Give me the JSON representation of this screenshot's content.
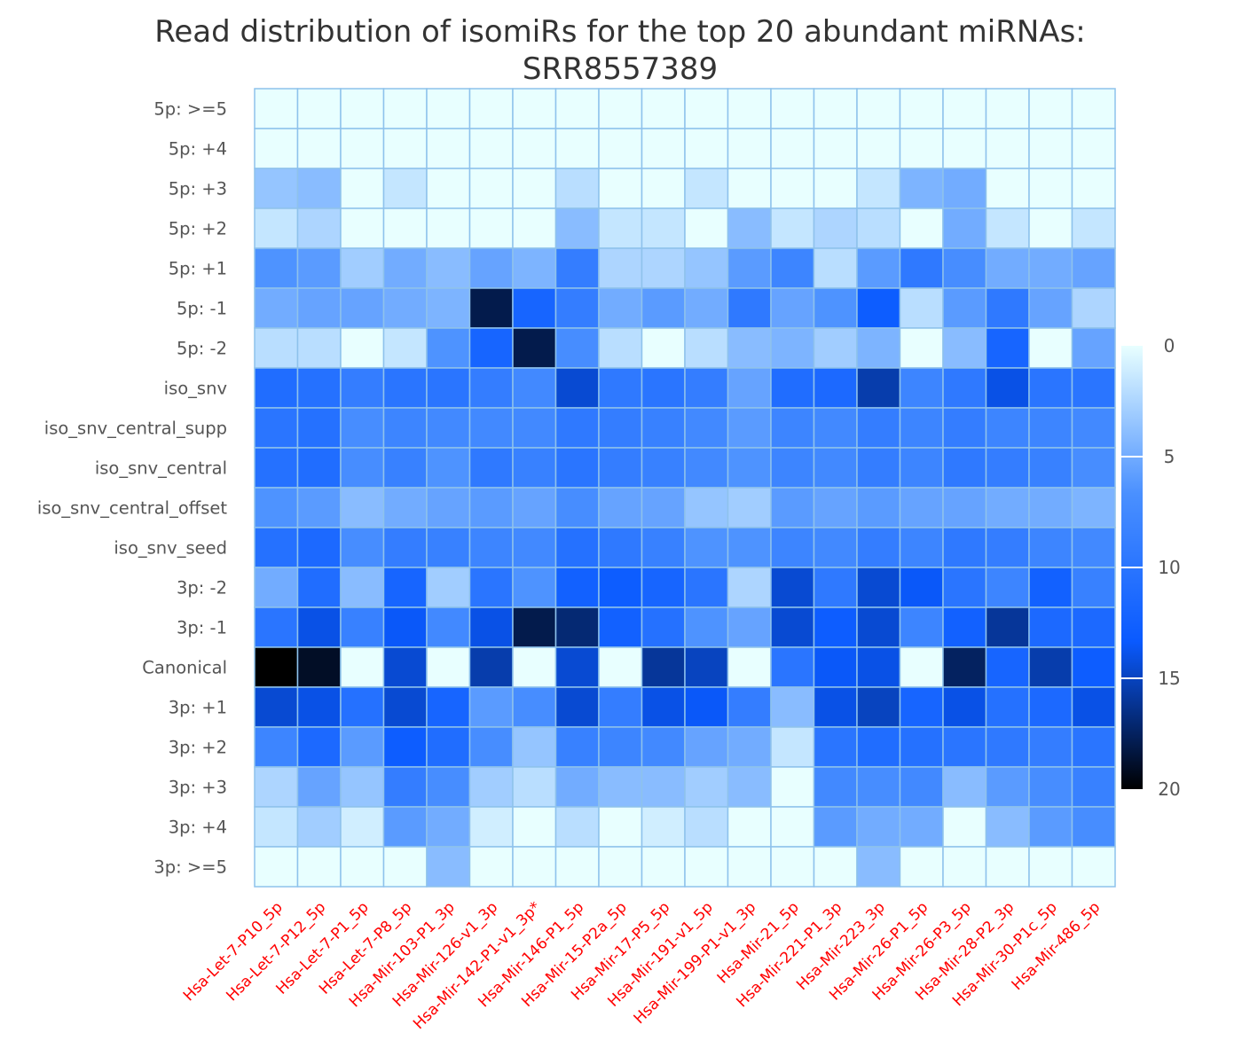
{
  "chart_data": {
    "type": "heatmap",
    "title_line1": "Read distribution of isomiRs for the top 20 abundant miRNAs:",
    "title_line2": "SRR8557389",
    "rows": [
      "5p: >=5",
      "5p: +4",
      "5p: +3",
      "5p: +2",
      "5p: +1",
      "5p: -1",
      "5p: -2",
      "iso_snv",
      "iso_snv_central_supp",
      "iso_snv_central",
      "iso_snv_central_offset",
      "iso_snv_seed",
      "3p: -2",
      "3p: -1",
      "Canonical",
      "3p: +1",
      "3p: +2",
      "3p: +3",
      "3p: +4",
      "3p: >=5"
    ],
    "columns": [
      "Hsa-Let-7-P10_5p",
      "Hsa-Let-7-P12_5p",
      "Hsa-Let-7-P1_5p",
      "Hsa-Let-7-P8_5p",
      "Hsa-Mir-103-P1_3p",
      "Hsa-Mir-126-v1_3p",
      "Hsa-Mir-142-P1-v1_3p*",
      "Hsa-Mir-146-P1_5p",
      "Hsa-Mir-15-P2a_5p",
      "Hsa-Mir-17-P5_5p",
      "Hsa-Mir-191-v1_5p",
      "Hsa-Mir-199-P1-v1_3p",
      "Hsa-Mir-21_5p",
      "Hsa-Mir-221-P1_3p",
      "Hsa-Mir-223_3p",
      "Hsa-Mir-26-P1_5p",
      "Hsa-Mir-26-P3_5p",
      "Hsa-Mir-28-P2_3p",
      "Hsa-Mir-30-P1c_5p",
      "Hsa-Mir-486_5p"
    ],
    "values": [
      [
        0,
        0,
        0,
        0,
        0,
        0,
        0,
        0,
        0,
        0,
        0,
        0,
        0,
        0,
        0,
        0,
        0,
        0,
        0,
        0
      ],
      [
        0,
        0,
        0,
        0,
        0,
        0,
        0,
        0,
        0,
        0,
        0,
        0,
        0,
        0,
        0,
        0,
        0,
        0,
        0,
        0
      ],
      [
        3.5,
        4,
        0,
        1.5,
        0,
        0,
        0,
        2,
        0,
        0,
        1.5,
        0,
        0,
        0,
        1.5,
        4.5,
        5,
        0,
        0,
        0
      ],
      [
        1.5,
        2.5,
        0,
        0,
        0,
        0,
        0,
        4,
        1.5,
        1.5,
        0,
        4,
        1.5,
        2.5,
        2,
        0,
        5,
        1.5,
        0,
        1.5
      ],
      [
        6.5,
        6,
        3,
        5,
        4,
        5.5,
        4.5,
        9,
        2.5,
        2.5,
        3.5,
        6,
        8,
        2,
        6,
        9.5,
        7,
        5,
        5,
        5.5
      ],
      [
        5,
        5.5,
        5.5,
        5,
        4.5,
        18,
        12,
        9,
        5,
        6,
        5,
        9.5,
        5.5,
        6.5,
        13,
        2,
        6,
        9.5,
        5.5,
        2.5
      ],
      [
        2,
        2,
        0,
        1.5,
        6.5,
        12,
        18,
        7,
        2,
        0,
        2,
        4,
        4.5,
        3,
        4.5,
        0,
        4,
        12,
        0,
        5.5
      ],
      [
        11,
        10.5,
        9,
        10,
        10,
        9,
        7.5,
        14.5,
        9.5,
        10,
        9,
        5.5,
        11,
        11.5,
        15.5,
        8,
        9.5,
        14,
        10,
        10
      ],
      [
        10,
        10.5,
        7,
        8,
        7.5,
        7.5,
        7.5,
        9.5,
        9,
        8.5,
        7.5,
        6,
        8,
        7.5,
        9,
        8,
        9,
        8,
        8,
        7.5
      ],
      [
        10.5,
        11,
        7,
        8.5,
        6.5,
        9.5,
        8.5,
        10,
        9,
        8.5,
        7.5,
        6.5,
        8,
        7.5,
        9,
        8,
        9.5,
        9,
        8.5,
        7
      ],
      [
        6.5,
        6,
        4,
        5,
        5.5,
        6,
        5.5,
        7,
        5.5,
        5.5,
        3.5,
        3,
        6,
        5.5,
        6,
        5.5,
        5.5,
        5,
        5,
        4.5
      ],
      [
        10.5,
        11.5,
        7,
        9,
        8.5,
        8,
        7.5,
        10.5,
        9.5,
        8.5,
        6.5,
        6.5,
        8,
        7.5,
        9,
        8,
        9.5,
        9,
        8,
        7.5
      ],
      [
        5,
        11,
        4,
        12,
        3,
        10,
        6.5,
        12.5,
        13,
        12,
        10,
        2.5,
        14.5,
        9.5,
        14.5,
        13.5,
        10,
        8,
        12.5,
        8.5
      ],
      [
        10,
        14,
        8.5,
        13.5,
        7.5,
        14,
        18,
        17,
        12.5,
        10.5,
        6.5,
        5.5,
        14.5,
        13,
        14.5,
        8,
        12.5,
        16,
        11.5,
        11.5
      ],
      [
        20,
        19,
        0,
        14.5,
        0,
        15.5,
        0,
        14.5,
        0,
        16,
        15,
        0,
        10,
        13.5,
        14,
        0,
        17.5,
        12,
        15.5,
        13
      ],
      [
        14.5,
        14,
        10.5,
        14.5,
        12,
        6,
        7,
        14.5,
        9,
        14,
        13.5,
        9,
        4,
        14,
        15,
        12,
        14,
        10.5,
        11.5,
        14
      ],
      [
        8,
        11.5,
        6,
        13,
        11,
        7,
        3.5,
        8.5,
        8,
        7.5,
        5.5,
        5,
        1.5,
        10,
        11,
        10.5,
        10,
        9.5,
        9,
        10
      ],
      [
        2.5,
        5.5,
        3.5,
        9,
        7,
        3,
        2,
        5,
        4,
        4,
        3,
        4,
        0,
        7.5,
        7,
        7.5,
        4,
        6,
        7,
        8.5
      ],
      [
        1.5,
        3,
        1,
        6,
        5,
        1,
        0,
        2,
        0,
        1,
        2,
        0,
        0,
        6,
        5,
        5,
        0,
        4,
        6,
        7
      ],
      [
        0,
        0,
        0,
        0,
        4,
        0,
        0,
        0,
        0,
        0,
        0,
        0,
        0,
        0,
        4,
        0,
        0,
        0,
        0,
        0
      ]
    ],
    "colorbar": {
      "ticks": [
        "0",
        "5",
        "10",
        "15",
        "20"
      ],
      "range": [
        0,
        20
      ],
      "colors": [
        "#e8ffff",
        "#4a90ff",
        "#0a5aff",
        "#000000"
      ]
    },
    "grid_line_color": "#8ec2ec",
    "ylabel_color": "#555555",
    "xlabel_color": "#ff0000"
  }
}
